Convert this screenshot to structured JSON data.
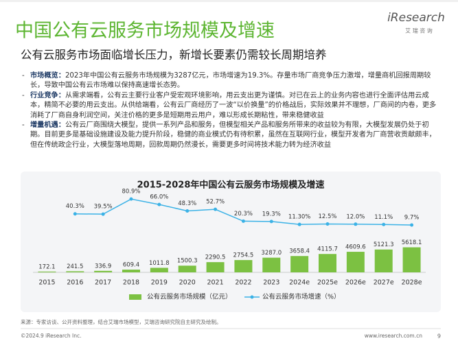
{
  "header": {
    "title": "中国公有云服务市场规模及增速",
    "subtitle": "公有云服务市场面临增长压力，新增长要素仍需较长周期培养",
    "logo": "iResearch",
    "logo_sub": "艾 瑞 咨 询"
  },
  "bullets": [
    {
      "label": "市场概览：",
      "text": "2023年中国公有云服务市场规模为3287亿元，市场增速为19.3%。存量市场厂商竞争压力激增，增量商机回报周期较长，导致中国公有云市场难以保持高速增长态势。"
    },
    {
      "label": "行业竞争：",
      "text": "从需求端看，公有云主要行业客户受宏观环境影响，用云支出更为谨慎。对已在云上的业务内容也进行全面评估用云成本，精简不必要的用云支出。从供给端看，公有云厂商经历了一波“以价换量”的价格战后，实际效果并不理想，厂商间的内卷，更多消耗了厂商自身利润空间，关注价格的更多是短期用云用户，难以形成长期粘性，带来稳健收益"
    },
    {
      "label": "增量机遇：",
      "text": "公有云厂商围绕大模型，提供一系列产品和服务，但模型相关产品和服务所带来的收益较为有限，大模型发展仍处于初期。目前更多是基础设施建设及能力提升阶段，稳健的商业模式仍有待积累，虽然在互联网行业，模型开发者为厂商营收贡献颇丰，但在传统政企行业，大模型落地周期，回款周期仍然漫长，需要更多时间将技术能力转为经济收益"
    }
  ],
  "chart_data": {
    "type": "bar-line",
    "title": "2015-2028年中国公有云服务市场规模及增速",
    "categories": [
      "2015",
      "2016",
      "2017",
      "2018",
      "2019",
      "2020",
      "2021",
      "2022",
      "2023",
      "2024e",
      "2025e",
      "2026e",
      "2027e",
      "2028e"
    ],
    "ylim": [
      0,
      18000
    ],
    "y2lim": [
      -120,
      100
    ],
    "series": [
      {
        "name": "公有云服务市场规模（亿元）",
        "color": "#7cc142",
        "values": [
          172.1,
          241.5,
          336.9,
          609.4,
          1011.8,
          1500.3,
          2290.5,
          2754.5,
          3287.0,
          3658.4,
          4115.7,
          4609.6,
          5121.3,
          5618.1
        ],
        "value_labels": [
          "172.1",
          "241.5",
          "336.9",
          "609.4",
          "1011.8",
          "1500.3",
          "2290.5",
          "2754.5",
          "3287.0",
          "3658.4",
          "4115.7",
          "4609.6",
          "5121.3",
          "5618.1"
        ]
      },
      {
        "name": "公有云服务市场增速（%）",
        "color": "#3bb2e6",
        "axis": "y2",
        "values": [
          null,
          40.3,
          39.5,
          80.9,
          66.0,
          48.3,
          52.7,
          20.3,
          19.3,
          11.3,
          12.5,
          12.0,
          11.1,
          9.7
        ],
        "value_labels": [
          null,
          "40.3%",
          "39.5%",
          "80.9%",
          "66.0%",
          "48.3%",
          "52.7%",
          "20.3%",
          "19.3%",
          "11.30%",
          "12.5%",
          "12.0%",
          "11.1%",
          "9.7%"
        ]
      }
    ]
  },
  "footer": {
    "source": "来源：专家访谈、公开资料整理，结合艾瑞市场模型，艾瑞咨询研究院自主研究及绘制。",
    "copyright": "©2024.9 iResearch Inc.",
    "url": "www.iresearch.com.cn",
    "page": "9"
  }
}
